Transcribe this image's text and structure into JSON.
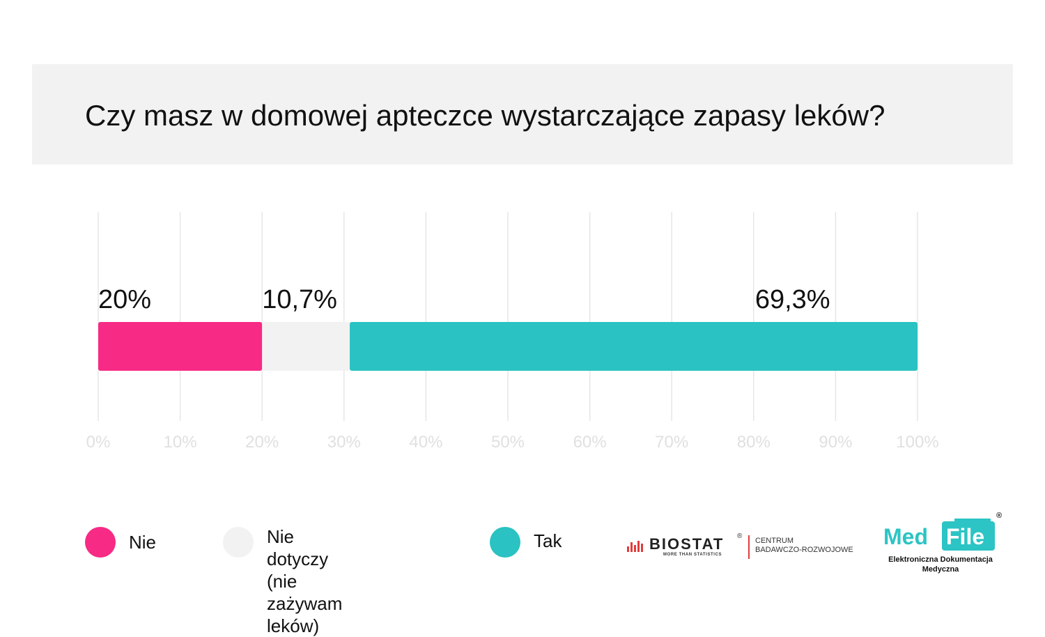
{
  "title": "Czy masz w domowej apteczce wystarczające zapasy leków?",
  "colors": {
    "nie": "#f72a85",
    "nie_dotyczy": "#f2f2f2",
    "tak": "#2ac2c2",
    "grid": "#e6e6e6",
    "tick": "#e0e0e0"
  },
  "chart_data": {
    "type": "bar",
    "orientation": "horizontal-stacked",
    "title": "Czy masz w domowej apteczce wystarczające zapasy leków?",
    "xlim": [
      0,
      100
    ],
    "x_ticks": [
      "0%",
      "10%",
      "20%",
      "30%",
      "40%",
      "50%",
      "60%",
      "70%",
      "80%",
      "90%",
      "100%"
    ],
    "grid": true,
    "legend_position": "bottom",
    "series": [
      {
        "name": "Nie",
        "value": 20,
        "label": "20%",
        "color": "#f72a85"
      },
      {
        "name": "Nie dotyczy (nie zażywam leków)",
        "value": 10.7,
        "label": "10,7%",
        "color": "#f2f2f2"
      },
      {
        "name": "Tak",
        "value": 69.3,
        "label": "69,3%",
        "color": "#2ac2c2"
      }
    ]
  },
  "legend": [
    {
      "label": "Nie",
      "color": "#f72a85"
    },
    {
      "label": "Nie dotyczy\n(nie zażywam leków)",
      "color": "#f2f2f2"
    },
    {
      "label": "Tak",
      "color": "#2ac2c2"
    }
  ],
  "logos": {
    "biostat": {
      "name": "BIOSTAT",
      "tagline": "MORE THAN STATISTICS",
      "reg": "®",
      "center": "CENTRUM\nBADAWCZO-ROZWOJOWE"
    },
    "medfile": {
      "med": "Med",
      "file": "File",
      "reg": "®",
      "subtitle": "Elektroniczna Dokumentacja Medyczna"
    }
  }
}
